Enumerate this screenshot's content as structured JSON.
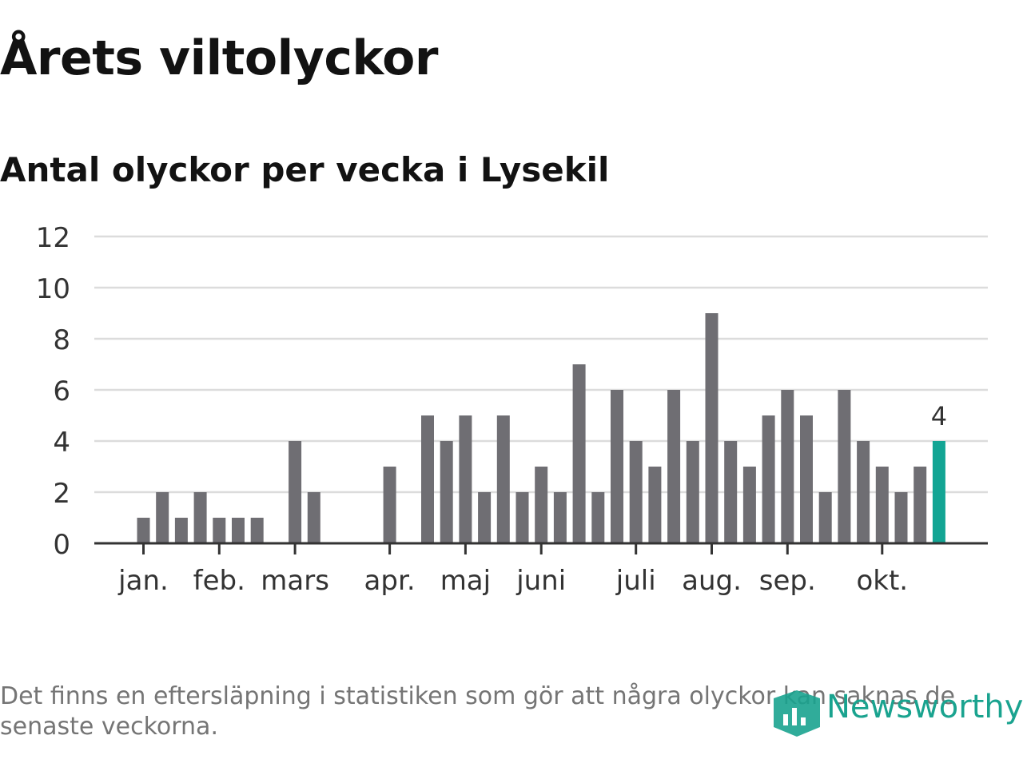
{
  "chart_data": {
    "type": "bar",
    "title": "Årets viltolyckor",
    "subtitle": "Antal olyckor per vecka i Lysekil",
    "xlabel": "",
    "ylabel": "",
    "ylim": [
      0,
      12
    ],
    "yticks": [
      "0",
      "2",
      "4",
      "6",
      "8",
      "10",
      "12"
    ],
    "grid": true,
    "weeks": [
      1,
      2,
      3,
      4,
      5,
      6,
      7,
      8,
      9,
      10,
      11,
      12,
      13,
      14,
      15,
      16,
      17,
      18,
      19,
      20,
      21,
      22,
      23,
      24,
      25,
      26,
      27,
      28,
      29,
      30,
      31,
      32,
      33,
      34,
      35,
      36,
      37,
      38,
      39,
      40,
      41,
      42,
      43
    ],
    "values": [
      1,
      2,
      1,
      2,
      1,
      1,
      1,
      0,
      4,
      2,
      0,
      0,
      0,
      3,
      0,
      5,
      4,
      5,
      2,
      5,
      2,
      3,
      2,
      7,
      2,
      6,
      4,
      3,
      6,
      4,
      9,
      4,
      3,
      5,
      6,
      5,
      2,
      6,
      4,
      3,
      2,
      3,
      4
    ],
    "month_ticks": [
      {
        "label": "jan.",
        "week": 1
      },
      {
        "label": "feb.",
        "week": 5
      },
      {
        "label": "mars",
        "week": 9
      },
      {
        "label": "apr.",
        "week": 14
      },
      {
        "label": "maj",
        "week": 18
      },
      {
        "label": "juni",
        "week": 22
      },
      {
        "label": "juli",
        "week": 27
      },
      {
        "label": "aug.",
        "week": 31
      },
      {
        "label": "sep.",
        "week": 35
      },
      {
        "label": "okt.",
        "week": 40
      }
    ],
    "highlight": {
      "week": 43,
      "value": 4,
      "label": "4"
    },
    "colors": {
      "bar": "#6f6e73",
      "highlight": "#13a594",
      "grid": "#dcdcdc",
      "axis": "#333333"
    }
  },
  "footnote": "Det finns en eftersläpning i statistiken som gör att några olyckor kan saknas de senaste veckorna.",
  "logo": {
    "text": "Newsworthy",
    "icon": "newsworthy-logo-icon",
    "color": "#1aa38f"
  }
}
